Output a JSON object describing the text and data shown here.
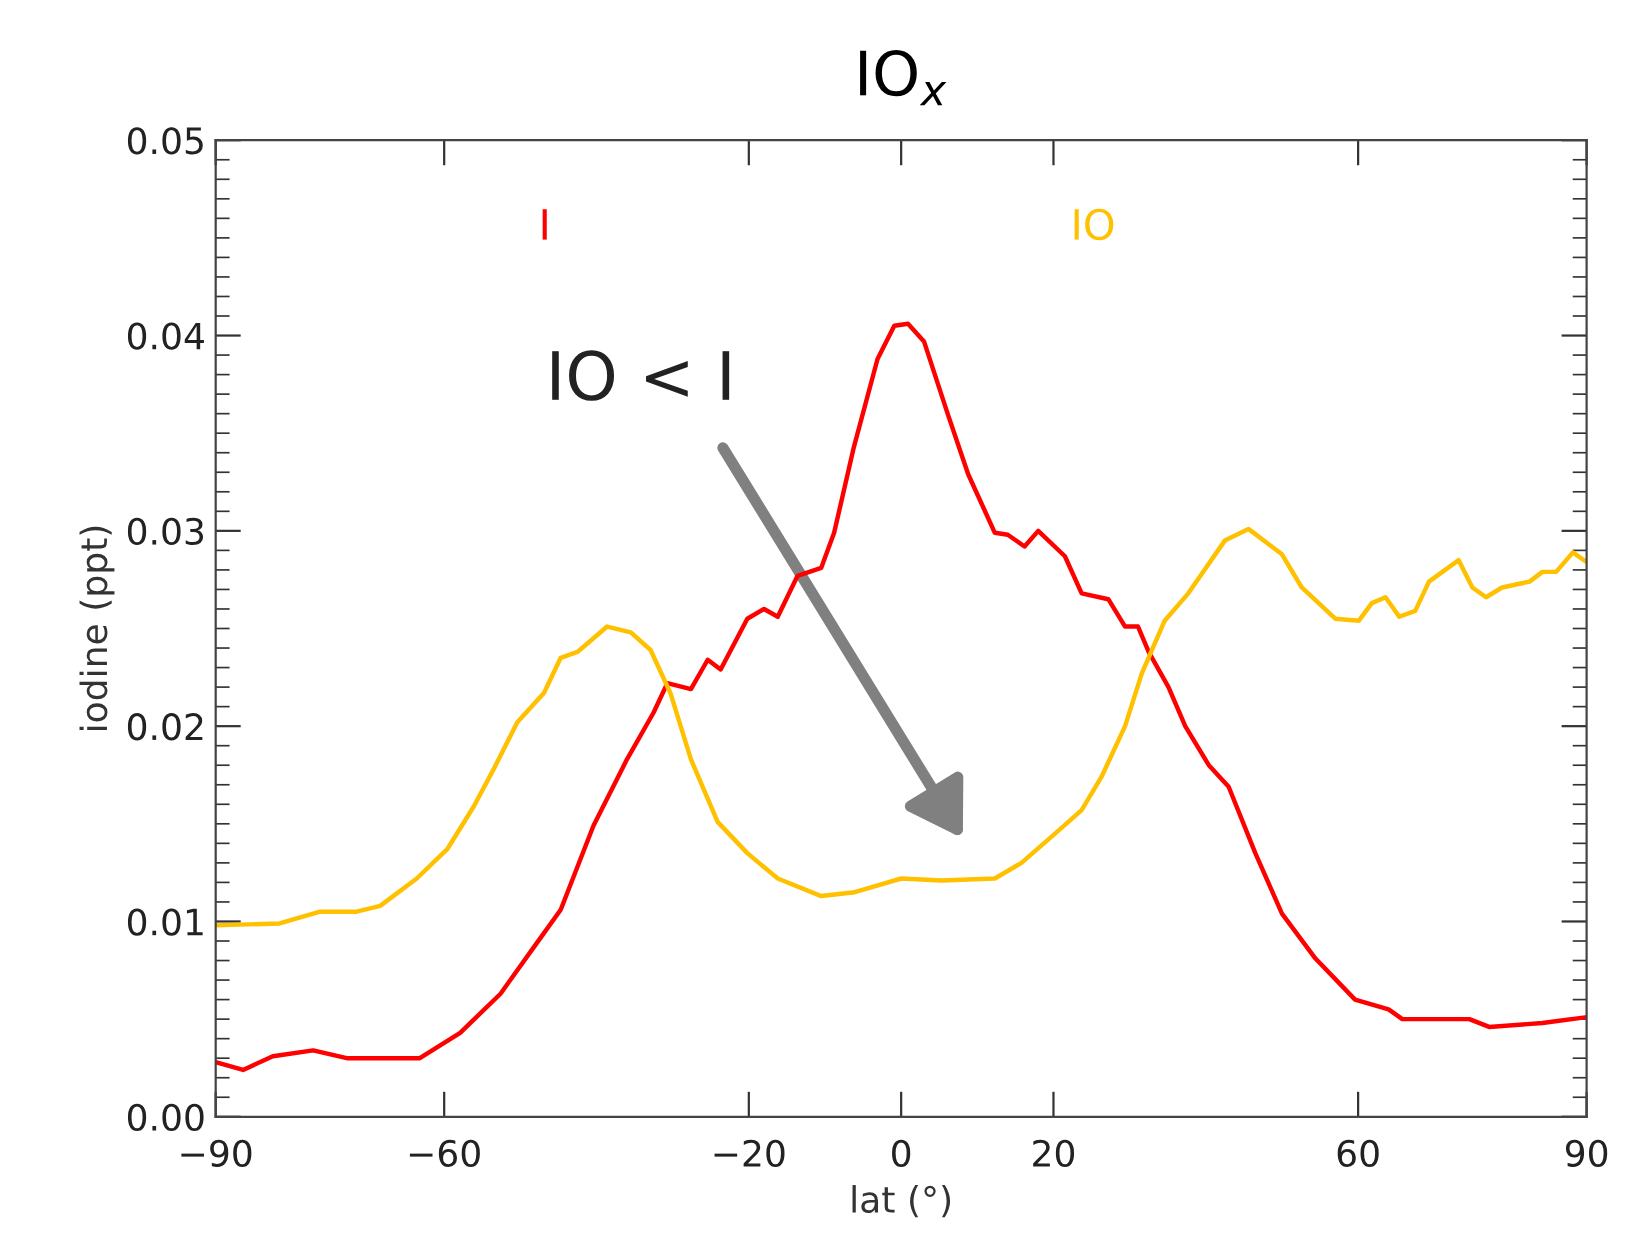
{
  "chart_data": {
    "type": "line",
    "title": "IO$_{x}$",
    "xlabel": "lat (°)",
    "ylabel": "iodine (ppt)",
    "xlim": [
      -90,
      90
    ],
    "xticks": [
      {
        "value": -90,
        "label": "−90"
      },
      {
        "value": -60,
        "label": "−60"
      },
      {
        "value": -20,
        "label": "−20"
      },
      0,
      20,
      60,
      90
    ],
    "ylim": [
      0,
      0.05
    ],
    "yticks": [
      {
        "value": 0,
        "label": "0.00"
      },
      {
        "value": 0.01,
        "label": "0.01"
      },
      {
        "value": 0.02,
        "label": "0.02"
      },
      {
        "value": 0.03,
        "label": "0.03"
      },
      {
        "value": 0.04,
        "label": "0.04"
      },
      {
        "value": 0.05,
        "label": "0.05"
      },
      {
        "value": 0.001,
        "label": null
      },
      {
        "value": 0.002,
        "label": null
      },
      {
        "value": 0.003,
        "label": null
      },
      {
        "value": 0.004,
        "label": null
      },
      {
        "value": 0.005,
        "label": null
      },
      {
        "value": 0.006,
        "label": null
      },
      {
        "value": 0.007,
        "label": null
      },
      {
        "value": 0.008,
        "label": null
      },
      {
        "value": 0.009,
        "label": null
      },
      {
        "value": 0.011,
        "label": null
      },
      {
        "value": 0.012,
        "label": null
      },
      {
        "value": 0.013,
        "label": null
      },
      {
        "value": 0.014,
        "label": null
      },
      {
        "value": 0.015,
        "label": null
      },
      {
        "value": 0.016,
        "label": null
      },
      {
        "value": 0.017,
        "label": null
      },
      {
        "value": 0.018,
        "label": null
      },
      {
        "value": 0.019,
        "label": null
      },
      {
        "value": 0.021,
        "label": null
      },
      {
        "value": 0.022,
        "label": null
      },
      {
        "value": 0.023,
        "label": null
      },
      {
        "value": 0.024,
        "label": null
      },
      {
        "value": 0.025,
        "label": null
      },
      {
        "value": 0.026,
        "label": null
      },
      {
        "value": 0.027,
        "label": null
      },
      {
        "value": 0.028,
        "label": null
      },
      {
        "value": 0.029,
        "label": null
      },
      {
        "value": 0.031,
        "label": null
      },
      {
        "value": 0.032,
        "label": null
      },
      {
        "value": 0.033,
        "label": null
      },
      {
        "value": 0.034,
        "label": null
      },
      {
        "value": 0.035,
        "label": null
      },
      {
        "value": 0.036,
        "label": null
      },
      {
        "value": 0.037,
        "label": null
      },
      {
        "value": 0.038,
        "label": null
      },
      {
        "value": 0.039,
        "label": null
      },
      {
        "value": 0.041,
        "label": null
      },
      {
        "value": 0.042,
        "label": null
      },
      {
        "value": 0.043,
        "label": null
      },
      {
        "value": 0.044,
        "label": null
      },
      {
        "value": 0.045,
        "label": null
      },
      {
        "value": 0.046,
        "label": null
      },
      {
        "value": 0.047,
        "label": null
      },
      {
        "value": 0.048,
        "label": null
      },
      {
        "value": 0.049,
        "label": null
      }
    ],
    "grid": false,
    "legend": false,
    "series": [
      {
        "name": "I",
        "color": "#ff0000",
        "x": [
          -90,
          -86.4,
          -82.5,
          -77.2,
          -72.8,
          -63.2,
          -57.9,
          -52.6,
          -48.2,
          -44.7,
          -40.4,
          -36.0,
          -32.5,
          -30.7,
          -27.6,
          -25.4,
          -23.7,
          -20.2,
          -18.0,
          -16.2,
          -13.6,
          -10.5,
          -8.8,
          -6.2,
          -3.1,
          -0.9,
          0.9,
          3.0,
          6.1,
          8.8,
          12.3,
          14.0,
          16.2,
          18.0,
          21.5,
          23.7,
          27.2,
          29.4,
          31.1,
          32.5,
          35.1,
          37.3,
          40.4,
          43.0,
          46.5,
          50.0,
          54.4,
          59.6,
          64.0,
          65.8,
          74.6,
          77.2,
          84.2,
          90
        ],
        "values": [
          0.0028,
          0.0024,
          0.0031,
          0.0034,
          0.003,
          0.003,
          0.0043,
          0.0063,
          0.0087,
          0.0106,
          0.0149,
          0.0183,
          0.0207,
          0.0222,
          0.0219,
          0.0234,
          0.0229,
          0.0255,
          0.026,
          0.0256,
          0.0277,
          0.0281,
          0.0299,
          0.0343,
          0.0388,
          0.0405,
          0.0406,
          0.0397,
          0.036,
          0.0329,
          0.0299,
          0.0298,
          0.0292,
          0.03,
          0.0287,
          0.0268,
          0.0265,
          0.0251,
          0.0251,
          0.0238,
          0.022,
          0.02,
          0.018,
          0.0169,
          0.0135,
          0.0104,
          0.0081,
          0.006,
          0.0055,
          0.005,
          0.005,
          0.0046,
          0.0048,
          0.0051
        ]
      },
      {
        "name": "IO",
        "color": "#ffc000",
        "x": [
          -90,
          -81.6,
          -76.3,
          -71.5,
          -68.4,
          -63.6,
          -59.6,
          -56.1,
          -53.5,
          -50.4,
          -46.9,
          -44.7,
          -42.5,
          -38.6,
          -35.5,
          -32.9,
          -30.3,
          -27.6,
          -24.1,
          -20.2,
          -16.2,
          -10.5,
          -6.1,
          -3.5,
          0,
          5.3,
          12.3,
          15.8,
          20.2,
          23.7,
          26.3,
          29.4,
          31.6,
          34.6,
          37.7,
          42.5,
          45.6,
          50.0,
          52.6,
          57.0,
          60.1,
          61.8,
          63.6,
          65.4,
          67.5,
          69.3,
          73.2,
          75.0,
          76.8,
          78.9,
          82.5,
          84.2,
          86.0,
          88.2,
          90
        ],
        "values": [
          0.0098,
          0.0099,
          0.0105,
          0.0105,
          0.0108,
          0.0122,
          0.0137,
          0.0159,
          0.0178,
          0.0202,
          0.0217,
          0.0235,
          0.0238,
          0.0251,
          0.0248,
          0.0239,
          0.0217,
          0.0183,
          0.0151,
          0.0135,
          0.0122,
          0.0113,
          0.0115,
          0.0118,
          0.0122,
          0.0121,
          0.0122,
          0.013,
          0.0145,
          0.0157,
          0.0174,
          0.02,
          0.0227,
          0.0254,
          0.0268,
          0.0295,
          0.0301,
          0.0288,
          0.0271,
          0.0255,
          0.0254,
          0.0263,
          0.0266,
          0.0256,
          0.0259,
          0.0274,
          0.0285,
          0.0271,
          0.0266,
          0.0271,
          0.0274,
          0.0279,
          0.0279,
          0.0289,
          0.0284
        ]
      }
    ],
    "annotations": [
      "IO < I"
    ]
  }
}
